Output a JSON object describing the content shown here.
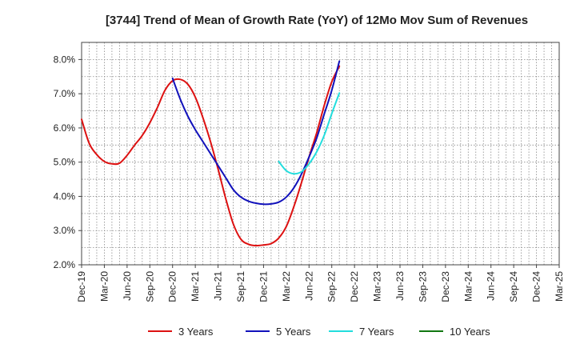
{
  "chart_data": {
    "type": "line",
    "title": "[3744]  Trend of Mean of Growth Rate (YoY) of 12Mo Mov Sum of Revenues",
    "xlabel": "",
    "ylabel": "",
    "ylim": [
      2.0,
      8.5
    ],
    "y_ticks": [
      2.0,
      3.0,
      4.0,
      5.0,
      6.0,
      7.0,
      8.0
    ],
    "y_tick_labels": [
      "2.0%",
      "3.0%",
      "4.0%",
      "5.0%",
      "6.0%",
      "7.0%",
      "8.0%"
    ],
    "x_ticks": [
      "Dec-19",
      "Mar-20",
      "Jun-20",
      "Sep-20",
      "Dec-20",
      "Mar-21",
      "Jun-21",
      "Sep-21",
      "Dec-21",
      "Mar-22",
      "Jun-22",
      "Sep-22",
      "Dec-22",
      "Mar-23",
      "Jun-23",
      "Sep-23",
      "Dec-23",
      "Mar-24",
      "Jun-24",
      "Sep-24",
      "Dec-24",
      "Mar-25"
    ],
    "grid": true,
    "legend_position": "bottom",
    "series": [
      {
        "name": "3 Years",
        "color": "#dd1111",
        "values": [
          [
            0,
            6.25
          ],
          [
            1,
            5.55
          ],
          [
            2,
            5.22
          ],
          [
            3,
            5.02
          ],
          [
            4,
            4.95
          ],
          [
            5,
            4.97
          ],
          [
            6,
            5.2
          ],
          [
            7,
            5.5
          ],
          [
            8,
            5.78
          ],
          [
            9,
            6.15
          ],
          [
            10,
            6.6
          ],
          [
            11,
            7.1
          ],
          [
            12,
            7.38
          ],
          [
            13,
            7.42
          ],
          [
            14,
            7.28
          ],
          [
            15,
            6.9
          ],
          [
            16,
            6.3
          ],
          [
            17,
            5.6
          ],
          [
            18,
            4.8
          ],
          [
            19,
            3.95
          ],
          [
            20,
            3.2
          ],
          [
            21,
            2.75
          ],
          [
            22,
            2.6
          ],
          [
            23,
            2.56
          ],
          [
            24,
            2.58
          ],
          [
            25,
            2.62
          ],
          [
            26,
            2.78
          ],
          [
            27,
            3.12
          ],
          [
            28,
            3.7
          ],
          [
            29,
            4.4
          ],
          [
            30,
            5.15
          ],
          [
            31,
            5.85
          ],
          [
            32,
            6.65
          ],
          [
            33,
            7.35
          ],
          [
            34,
            7.8
          ]
        ]
      },
      {
        "name": "5 Years",
        "color": "#1111bb",
        "values": [
          [
            12,
            7.45
          ],
          [
            13,
            6.85
          ],
          [
            14,
            6.35
          ],
          [
            15,
            5.95
          ],
          [
            16,
            5.6
          ],
          [
            17,
            5.25
          ],
          [
            18,
            4.9
          ],
          [
            19,
            4.55
          ],
          [
            20,
            4.2
          ],
          [
            21,
            3.98
          ],
          [
            22,
            3.86
          ],
          [
            23,
            3.8
          ],
          [
            24,
            3.77
          ],
          [
            25,
            3.78
          ],
          [
            26,
            3.83
          ],
          [
            27,
            3.98
          ],
          [
            28,
            4.25
          ],
          [
            29,
            4.65
          ],
          [
            30,
            5.15
          ],
          [
            31,
            5.7
          ],
          [
            32,
            6.4
          ],
          [
            33,
            7.1
          ],
          [
            34,
            7.95
          ]
        ]
      },
      {
        "name": "7 Years",
        "color": "#22dddd",
        "values": [
          [
            26,
            5.02
          ],
          [
            27,
            4.75
          ],
          [
            28,
            4.66
          ],
          [
            29,
            4.72
          ],
          [
            30,
            4.95
          ],
          [
            31,
            5.3
          ],
          [
            32,
            5.78
          ],
          [
            33,
            6.42
          ],
          [
            34,
            7.02
          ]
        ]
      },
      {
        "name": "10 Years",
        "color": "#117711",
        "values": []
      }
    ]
  }
}
